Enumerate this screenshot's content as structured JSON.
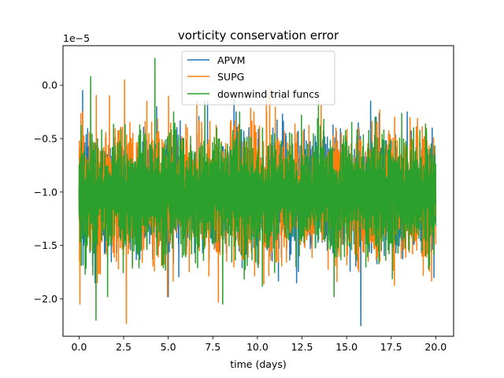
{
  "chart_data": {
    "type": "line",
    "title": "vorticity conservation error",
    "xlabel": "time (days)",
    "ylabel": "",
    "y_offset_label": "1e−5",
    "xlim": [
      -0.9,
      21.0
    ],
    "ylim": [
      -2.35,
      0.37
    ],
    "x_ticks": [
      0.0,
      2.5,
      5.0,
      7.5,
      10.0,
      12.5,
      15.0,
      17.5,
      20.0
    ],
    "x_tick_labels": [
      "0.0",
      "2.5",
      "5.0",
      "7.5",
      "10.0",
      "12.5",
      "15.0",
      "17.5",
      "20.0"
    ],
    "y_ticks": [
      0.0,
      -0.5,
      -1.0,
      -1.5,
      -2.0
    ],
    "y_tick_labels": [
      "0.0",
      "−0.5",
      "−1.0",
      "−1.5",
      "−2.0"
    ],
    "legend_position": "upper-center",
    "series": [
      {
        "name": "APVM",
        "color": "#1f77b4",
        "x_range": [
          0.0,
          20.0
        ],
        "center": -1.0,
        "typical_band": [
          -1.5,
          -0.55
        ],
        "extremes": [
          {
            "x": 0.2,
            "y": -0.05
          },
          {
            "x": 0.9,
            "y": -1.85
          },
          {
            "x": 4.35,
            "y": -0.2
          },
          {
            "x": 5.0,
            "y": -1.98
          },
          {
            "x": 7.2,
            "y": -0.15
          },
          {
            "x": 8.8,
            "y": -0.25
          },
          {
            "x": 12.2,
            "y": -1.85
          },
          {
            "x": 15.8,
            "y": -2.25
          },
          {
            "x": 16.35,
            "y": -0.15
          },
          {
            "x": 18.4,
            "y": -0.25
          },
          {
            "x": 19.8,
            "y": -0.4
          },
          {
            "x": 19.9,
            "y": -1.8
          }
        ]
      },
      {
        "name": "SUPG",
        "color": "#ff7f0e",
        "x_range": [
          0.0,
          20.0
        ],
        "center": -1.0,
        "typical_band": [
          -1.55,
          -0.5
        ],
        "extremes": [
          {
            "x": 0.05,
            "y": -2.05
          },
          {
            "x": 0.2,
            "y": -0.25
          },
          {
            "x": 1.7,
            "y": -0.1
          },
          {
            "x": 2.55,
            "y": 0.05
          },
          {
            "x": 2.65,
            "y": -2.23
          },
          {
            "x": 3.8,
            "y": -0.15
          },
          {
            "x": 4.95,
            "y": -1.98
          },
          {
            "x": 6.6,
            "y": -0.15
          },
          {
            "x": 9.8,
            "y": -0.25
          },
          {
            "x": 14.4,
            "y": -0.4
          },
          {
            "x": 17.7,
            "y": -0.3
          },
          {
            "x": 19.3,
            "y": -1.78
          }
        ]
      },
      {
        "name": "downwind trial funcs",
        "color": "#2ca02c",
        "x_range": [
          0.0,
          20.0
        ],
        "center": -1.0,
        "typical_band": [
          -1.5,
          -0.55
        ],
        "extremes": [
          {
            "x": 0.65,
            "y": 0.08
          },
          {
            "x": 0.95,
            "y": -2.2
          },
          {
            "x": 1.6,
            "y": -1.98
          },
          {
            "x": 4.25,
            "y": 0.25
          },
          {
            "x": 5.3,
            "y": -0.25
          },
          {
            "x": 7.05,
            "y": -0.15
          },
          {
            "x": 8.05,
            "y": -2.05
          },
          {
            "x": 9.0,
            "y": -0.25
          },
          {
            "x": 14.3,
            "y": -1.98
          },
          {
            "x": 16.6,
            "y": -0.3
          },
          {
            "x": 19.6,
            "y": -1.72
          }
        ]
      }
    ]
  },
  "colors": {
    "axes": "#000000",
    "background": "#ffffff",
    "legend_border": "#cccccc"
  }
}
